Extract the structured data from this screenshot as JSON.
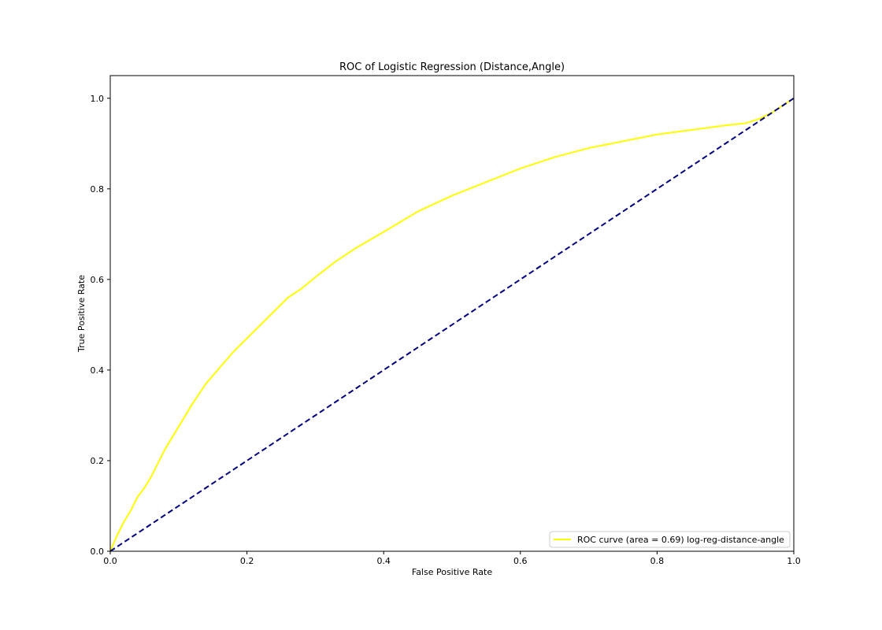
{
  "chart_data": {
    "type": "line",
    "title": "ROC of Logistic Regression (Distance,Angle)",
    "xlabel": "False Positive Rate",
    "ylabel": "True Positive Rate",
    "xlim": [
      0.0,
      1.0
    ],
    "ylim": [
      0.0,
      1.05
    ],
    "xticks": [
      0.0,
      0.2,
      0.4,
      0.6,
      0.8,
      1.0
    ],
    "yticks": [
      0.0,
      0.2,
      0.4,
      0.6,
      0.8,
      1.0
    ],
    "xtick_labels": [
      "0.0",
      "0.2",
      "0.4",
      "0.6",
      "0.8",
      "1.0"
    ],
    "ytick_labels": [
      "0.0",
      "0.2",
      "0.4",
      "0.6",
      "0.8",
      "1.0"
    ],
    "grid": false,
    "legend_position": "lower-right",
    "series": [
      {
        "name": "ROC curve (area = 0.69) log-reg-distance-angle",
        "color": "#ffff00",
        "style": "solid",
        "x": [
          0.0,
          0.01,
          0.02,
          0.03,
          0.04,
          0.05,
          0.06,
          0.07,
          0.08,
          0.09,
          0.1,
          0.12,
          0.14,
          0.16,
          0.18,
          0.2,
          0.22,
          0.24,
          0.26,
          0.28,
          0.3,
          0.33,
          0.36,
          0.4,
          0.45,
          0.5,
          0.55,
          0.6,
          0.65,
          0.7,
          0.75,
          0.8,
          0.85,
          0.9,
          0.93,
          0.95,
          0.97,
          1.0
        ],
        "y": [
          0.0,
          0.035,
          0.065,
          0.09,
          0.12,
          0.14,
          0.165,
          0.195,
          0.225,
          0.25,
          0.275,
          0.325,
          0.37,
          0.405,
          0.44,
          0.47,
          0.5,
          0.53,
          0.56,
          0.58,
          0.605,
          0.64,
          0.67,
          0.705,
          0.75,
          0.785,
          0.815,
          0.845,
          0.87,
          0.89,
          0.905,
          0.92,
          0.93,
          0.94,
          0.945,
          0.955,
          0.97,
          1.0
        ]
      },
      {
        "name": "",
        "color": "#000080",
        "style": "dashed",
        "x": [
          0.0,
          1.0
        ],
        "y": [
          0.0,
          1.0
        ]
      }
    ]
  }
}
